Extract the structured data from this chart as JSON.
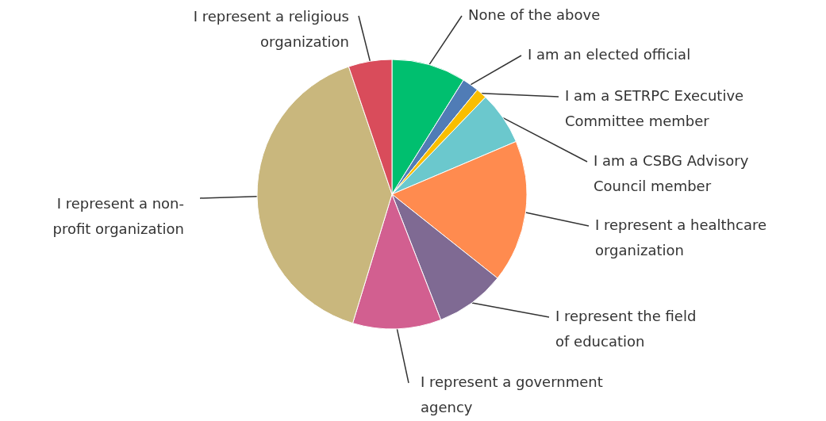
{
  "chart_data": {
    "type": "pie",
    "categories": [
      "None of the above",
      "I am an elected official",
      "I am a SETRPC Executive Committee member",
      "I am a CSBG Advisory Council member",
      "I represent a healthcare organization",
      "I represent the field of education",
      "I represent a government agency",
      "I represent a non-profit organization",
      "I represent a religious organization"
    ],
    "values": [
      8.9,
      2.0,
      1.3,
      6.4,
      17.1,
      8.4,
      10.6,
      40.1,
      5.2
    ],
    "colors": [
      "#00bf6f",
      "#507cb6",
      "#f9be00",
      "#6bc8cd",
      "#ff8b4f",
      "#7f6a93",
      "#d25f90",
      "#c9b77d",
      "#d94c5b"
    ]
  }
}
